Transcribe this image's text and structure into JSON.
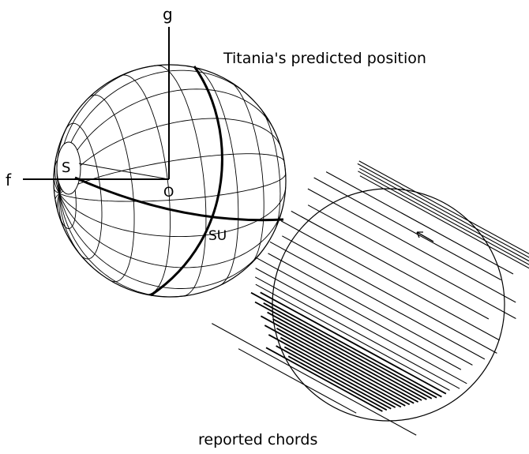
{
  "labels": {
    "g_axis": "g",
    "f_axis": "f",
    "south_pole": "S",
    "origin": "O",
    "sub_point": "SU",
    "predicted_title": "Titania's predicted position",
    "chords_caption": "reported chords"
  }
}
